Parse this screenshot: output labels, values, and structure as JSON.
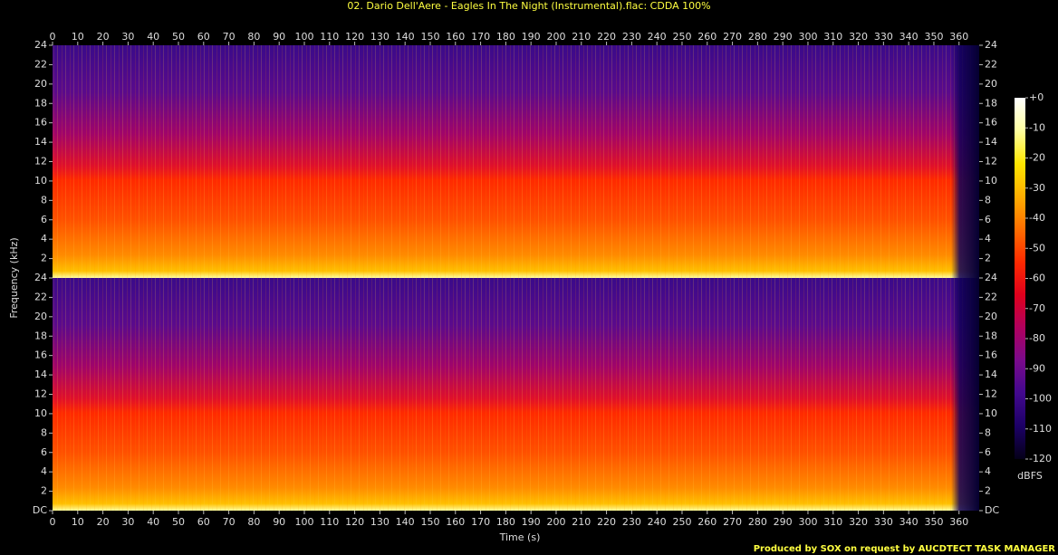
{
  "chart_data": {
    "type": "spectrogram",
    "title": "02. Dario Dell'Aere - Eagles In The Night (Instrumental).flac: CDDA 100%",
    "xlabel": "Time (s)",
    "ylabel": "Frequency (kHz)",
    "footer": "Produced by SOX on request by AUCDTECT TASK MANAGER",
    "xlim": [
      0,
      368
    ],
    "xticks": [
      0,
      10,
      20,
      30,
      40,
      50,
      60,
      70,
      80,
      90,
      100,
      110,
      120,
      130,
      140,
      150,
      160,
      170,
      180,
      190,
      200,
      210,
      220,
      230,
      240,
      250,
      260,
      270,
      280,
      290,
      300,
      310,
      320,
      330,
      340,
      350,
      360
    ],
    "channels": [
      {
        "ylim": [
          0,
          24
        ],
        "yticks": [
          2,
          4,
          6,
          8,
          10,
          12,
          14,
          16,
          18,
          20,
          22,
          24
        ]
      },
      {
        "ylim": [
          0,
          24
        ],
        "yticks": [
          {
            "value": 0,
            "label": "DC"
          },
          2,
          4,
          6,
          8,
          10,
          12,
          14,
          16,
          18,
          20,
          22,
          24
        ]
      }
    ],
    "colorbar": {
      "label": "dBFS",
      "ylim": [
        -120,
        0
      ],
      "yticks": [
        {
          "value": 0,
          "label": "+0"
        },
        -10,
        -20,
        -30,
        -40,
        -50,
        -60,
        -70,
        -80,
        -90,
        -100,
        -110,
        -120
      ],
      "colors": [
        "#050018",
        "#1c0066",
        "#42088e",
        "#7a0a8c",
        "#b0005e",
        "#e0001c",
        "#ff2a00",
        "#ff6e00",
        "#ffae00",
        "#ffe600",
        "#ffffa0",
        "#ffffff"
      ]
    }
  }
}
